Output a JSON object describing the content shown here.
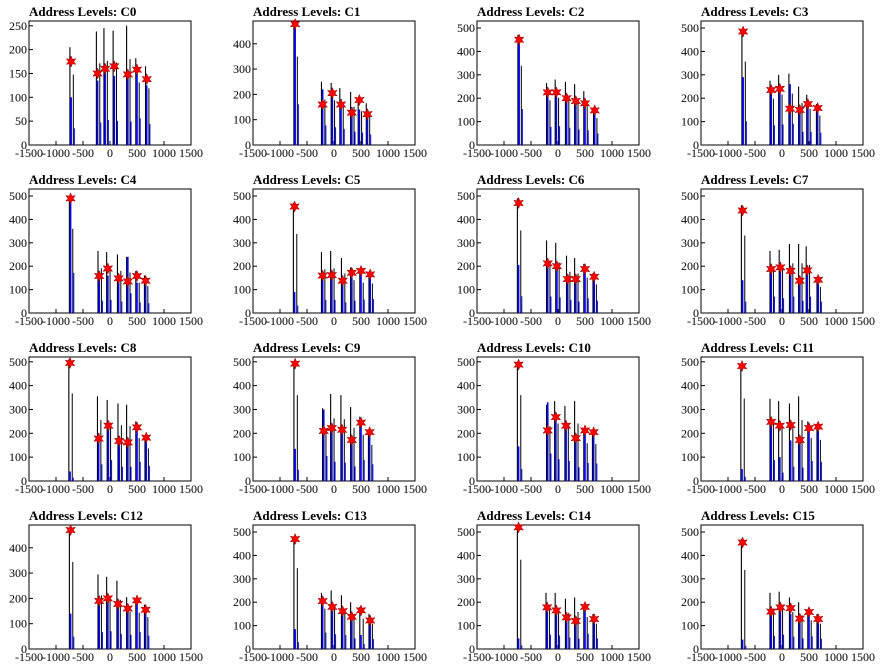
{
  "colors": {
    "spike_black": "#000000",
    "spike_blue": "#0000ff",
    "marker": "#ff0000",
    "frame": "#000000"
  },
  "marker_icon": "red-star-marker",
  "chart_data": [
    {
      "type": "bar",
      "title": "Address Levels: C0",
      "xlim": [
        -1500,
        1500
      ],
      "ylim": [
        0,
        260
      ],
      "xticks": [
        -1500,
        -1000,
        -500,
        0,
        500,
        1000,
        1500
      ],
      "yticks": [
        0,
        50,
        100,
        150,
        200,
        250
      ],
      "x": [
        -720,
        -230,
        -90,
        80,
        330,
        500,
        680
      ],
      "peaks": [
        205,
        238,
        245,
        240,
        250,
        182,
        165
      ],
      "base": [
        100,
        135,
        150,
        145,
        140,
        160,
        125
      ],
      "markers": [
        175,
        150,
        160,
        165,
        148,
        158,
        138
      ]
    },
    {
      "type": "bar",
      "title": "Address Levels: C1",
      "xlim": [
        -1500,
        1500
      ],
      "ylim": [
        0,
        490
      ],
      "xticks": [
        -1500,
        -1000,
        -500,
        0,
        500,
        1000,
        1500
      ],
      "yticks": [
        0,
        100,
        200,
        300,
        400
      ],
      "x": [
        -720,
        -210,
        -30,
        130,
        330,
        470,
        620
      ],
      "peaks": [
        485,
        250,
        245,
        225,
        210,
        185,
        165
      ],
      "base": [
        460,
        220,
        200,
        180,
        150,
        140,
        120
      ],
      "markers": [
        478,
        160,
        205,
        160,
        128,
        178,
        122
      ]
    },
    {
      "type": "bar",
      "title": "Address Levels: C2",
      "xlim": [
        -1500,
        1500
      ],
      "ylim": [
        0,
        530
      ],
      "xticks": [
        -1500,
        -1000,
        -500,
        0,
        500,
        1000,
        1500
      ],
      "yticks": [
        0,
        100,
        200,
        300,
        400,
        500
      ],
      "x": [
        -720,
        -190,
        -30,
        160,
        330,
        500,
        680
      ],
      "peaks": [
        470,
        265,
        280,
        270,
        260,
        230,
        160
      ],
      "base": [
        440,
        220,
        230,
        210,
        190,
        180,
        140
      ],
      "markers": [
        450,
        225,
        225,
        200,
        188,
        178,
        148
      ]
    },
    {
      "type": "bar",
      "title": "Address Levels: C3",
      "xlim": [
        -1500,
        1500
      ],
      "ylim": [
        0,
        530
      ],
      "xticks": [
        -1500,
        -1000,
        -500,
        0,
        500,
        1000,
        1500
      ],
      "yticks": [
        0,
        100,
        200,
        300,
        400,
        500
      ],
      "x": [
        -720,
        -200,
        -40,
        150,
        330,
        480,
        660
      ],
      "peaks": [
        495,
        275,
        300,
        305,
        250,
        215,
        175
      ],
      "base": [
        290,
        240,
        250,
        260,
        160,
        160,
        150
      ],
      "markers": [
        485,
        235,
        240,
        155,
        150,
        175,
        158
      ]
    },
    {
      "type": "bar",
      "title": "Address Levels: C4",
      "xlim": [
        -1500,
        1500
      ],
      "ylim": [
        0,
        530
      ],
      "xticks": [
        -1500,
        -1000,
        -500,
        0,
        500,
        1000,
        1500
      ],
      "yticks": [
        0,
        100,
        200,
        300,
        400,
        500
      ],
      "x": [
        -730,
        -200,
        -40,
        160,
        330,
        500,
        660
      ],
      "peaks": [
        500,
        265,
        260,
        250,
        240,
        180,
        160
      ],
      "base": [
        490,
        150,
        160,
        140,
        240,
        130,
        120
      ],
      "markers": [
        490,
        158,
        190,
        148,
        135,
        158,
        138
      ]
    },
    {
      "type": "bar",
      "title": "Address Levels: C5",
      "xlim": [
        -1500,
        1500
      ],
      "ylim": [
        0,
        530
      ],
      "xticks": [
        -1500,
        -1000,
        -500,
        0,
        500,
        1000,
        1500
      ],
      "yticks": [
        0,
        100,
        200,
        300,
        400,
        500
      ],
      "x": [
        -730,
        -210,
        -40,
        160,
        330,
        500,
        670
      ],
      "peaks": [
        470,
        260,
        265,
        235,
        195,
        180,
        175
      ],
      "base": [
        90,
        160,
        160,
        130,
        150,
        165,
        170
      ],
      "markers": [
        455,
        160,
        162,
        138,
        172,
        180,
        165
      ]
    },
    {
      "type": "bar",
      "title": "Address Levels: C6",
      "xlim": [
        -1500,
        1500
      ],
      "ylim": [
        0,
        530
      ],
      "xticks": [
        -1500,
        -1000,
        -500,
        0,
        500,
        1000,
        1500
      ],
      "yticks": [
        0,
        100,
        200,
        300,
        400,
        500
      ],
      "x": [
        -730,
        -190,
        -20,
        180,
        330,
        500,
        670
      ],
      "peaks": [
        490,
        310,
        300,
        245,
        235,
        210,
        170
      ],
      "base": [
        205,
        200,
        190,
        160,
        140,
        180,
        150
      ],
      "markers": [
        470,
        212,
        200,
        145,
        145,
        188,
        155
      ]
    },
    {
      "type": "bar",
      "title": "Address Levels: C7",
      "xlim": [
        -1500,
        1500
      ],
      "ylim": [
        0,
        530
      ],
      "xticks": [
        -1500,
        -1000,
        -500,
        0,
        500,
        1000,
        1500
      ],
      "yticks": [
        0,
        100,
        200,
        300,
        400,
        500
      ],
      "x": [
        -730,
        -200,
        -30,
        160,
        330,
        470,
        670
      ],
      "peaks": [
        460,
        265,
        270,
        295,
        295,
        285,
        155
      ],
      "base": [
        140,
        200,
        180,
        200,
        150,
        200,
        140
      ],
      "markers": [
        438,
        188,
        195,
        180,
        138,
        182,
        142
      ]
    },
    {
      "type": "bar",
      "title": "Address Levels: C8",
      "xlim": [
        -1500,
        1500
      ],
      "ylim": [
        0,
        520
      ],
      "xticks": [
        -1500,
        -1000,
        -500,
        0,
        500,
        1000,
        1500
      ],
      "yticks": [
        0,
        100,
        200,
        300,
        400,
        500
      ],
      "x": [
        -740,
        -210,
        -30,
        170,
        330,
        500,
        670
      ],
      "peaks": [
        510,
        355,
        340,
        325,
        320,
        250,
        190
      ],
      "base": [
        40,
        200,
        250,
        170,
        170,
        230,
        180
      ],
      "markers": [
        495,
        178,
        232,
        168,
        162,
        225,
        182
      ]
    },
    {
      "type": "bar",
      "title": "Address Levels: C9",
      "xlim": [
        -1500,
        1500
      ],
      "ylim": [
        0,
        520
      ],
      "xticks": [
        -1500,
        -1000,
        -500,
        0,
        500,
        1000,
        1500
      ],
      "yticks": [
        0,
        100,
        200,
        300,
        400,
        500
      ],
      "x": [
        -720,
        -190,
        -40,
        150,
        330,
        500,
        660
      ],
      "peaks": [
        500,
        305,
        365,
        360,
        310,
        270,
        210
      ],
      "base": [
        135,
        300,
        230,
        220,
        175,
        250,
        200
      ],
      "markers": [
        492,
        210,
        222,
        215,
        172,
        245,
        205
      ]
    },
    {
      "type": "bar",
      "title": "Address Levels: C10",
      "xlim": [
        -1500,
        1500
      ],
      "ylim": [
        0,
        520
      ],
      "xticks": [
        -1500,
        -1000,
        -500,
        0,
        500,
        1000,
        1500
      ],
      "yticks": [
        0,
        100,
        200,
        300,
        400,
        500
      ],
      "x": [
        -730,
        -190,
        -40,
        150,
        330,
        500,
        660
      ],
      "peaks": [
        500,
        320,
        335,
        315,
        335,
        220,
        215
      ],
      "base": [
        145,
        330,
        260,
        240,
        165,
        215,
        210
      ],
      "markers": [
        488,
        212,
        268,
        232,
        180,
        212,
        205
      ]
    },
    {
      "type": "bar",
      "title": "Address Levels: C11",
      "xlim": [
        -1500,
        1500
      ],
      "ylim": [
        0,
        520
      ],
      "xticks": [
        -1500,
        -1000,
        -500,
        0,
        500,
        1000,
        1500
      ],
      "yticks": [
        0,
        100,
        200,
        300,
        400,
        500
      ],
      "x": [
        -740,
        -200,
        -40,
        160,
        330,
        500,
        670
      ],
      "peaks": [
        480,
        345,
        335,
        325,
        355,
        250,
        240
      ],
      "base": [
        50,
        250,
        100,
        170,
        160,
        240,
        230
      ],
      "markers": [
        482,
        248,
        232,
        235,
        172,
        222,
        228
      ]
    },
    {
      "type": "bar",
      "title": "Address Levels: C12",
      "xlim": [
        -1500,
        1500
      ],
      "ylim": [
        0,
        490
      ],
      "xticks": [
        -1500,
        -1000,
        -500,
        0,
        500,
        1000,
        1500
      ],
      "yticks": [
        0,
        100,
        200,
        300,
        400
      ],
      "x": [
        -730,
        -200,
        -40,
        150,
        330,
        500,
        660
      ],
      "peaks": [
        478,
        295,
        285,
        270,
        205,
        200,
        175
      ],
      "base": [
        140,
        190,
        200,
        170,
        160,
        190,
        150
      ],
      "markers": [
        470,
        190,
        200,
        178,
        160,
        192,
        155
      ]
    },
    {
      "type": "bar",
      "title": "Address Levels: C13",
      "xlim": [
        -1500,
        1500
      ],
      "ylim": [
        0,
        530
      ],
      "xticks": [
        -1500,
        -1000,
        -500,
        0,
        500,
        1000,
        1500
      ],
      "yticks": [
        0,
        100,
        200,
        300,
        400,
        500
      ],
      "x": [
        -720,
        -210,
        -30,
        160,
        330,
        500,
        670
      ],
      "peaks": [
        480,
        240,
        250,
        230,
        200,
        180,
        150
      ],
      "base": [
        85,
        200,
        180,
        170,
        130,
        60,
        120
      ],
      "markers": [
        470,
        205,
        180,
        162,
        138,
        165,
        122
      ]
    },
    {
      "type": "bar",
      "title": "Address Levels: C14",
      "xlim": [
        -1500,
        1500
      ],
      "ylim": [
        0,
        530
      ],
      "xticks": [
        -1500,
        -1000,
        -500,
        0,
        500,
        1000,
        1500
      ],
      "yticks": [
        0,
        100,
        200,
        300,
        400,
        500
      ],
      "x": [
        -730,
        -200,
        -30,
        160,
        330,
        500,
        670
      ],
      "peaks": [
        530,
        240,
        240,
        215,
        220,
        190,
        150
      ],
      "base": [
        45,
        175,
        165,
        140,
        125,
        185,
        130
      ],
      "markers": [
        520,
        178,
        165,
        135,
        120,
        180,
        128
      ]
    },
    {
      "type": "bar",
      "title": "Address Levels: C15",
      "xlim": [
        -1500,
        1500
      ],
      "ylim": [
        0,
        530
      ],
      "xticks": [
        -1500,
        -1000,
        -500,
        0,
        500,
        1000,
        1500
      ],
      "yticks": [
        0,
        100,
        200,
        300,
        400,
        500
      ],
      "x": [
        -730,
        -200,
        -30,
        160,
        330,
        500,
        670
      ],
      "peaks": [
        470,
        240,
        245,
        220,
        200,
        170,
        150
      ],
      "base": [
        40,
        160,
        175,
        150,
        130,
        155,
        125
      ],
      "markers": [
        455,
        160,
        178,
        175,
        130,
        158,
        128
      ]
    }
  ]
}
